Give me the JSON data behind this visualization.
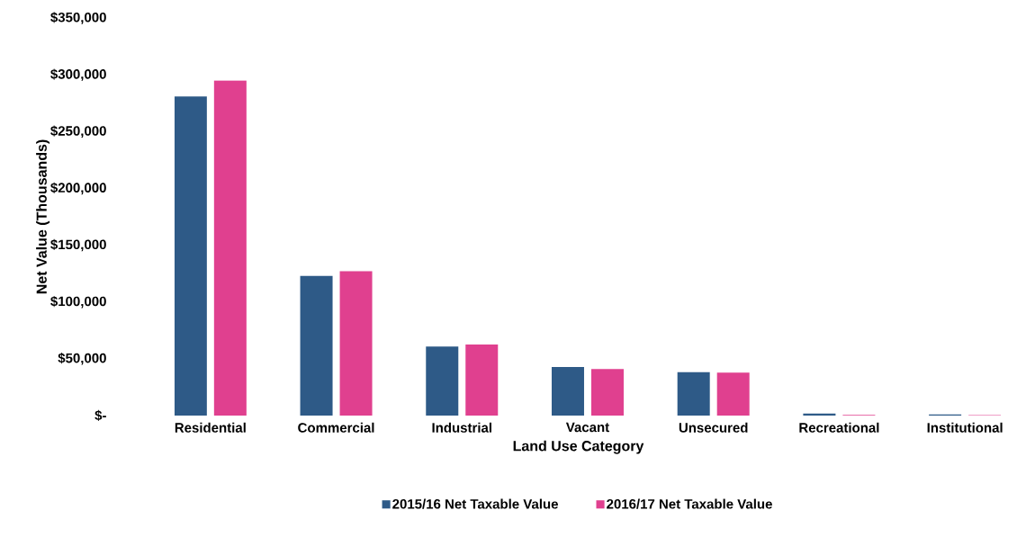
{
  "chart_data": {
    "type": "bar",
    "xlabel": "Land Use Category",
    "ylabel": "Net Value (Thousands)",
    "categories": [
      "Residential",
      "Commercial",
      "Industrial",
      "Vacant",
      "Unsecured",
      "Recreational",
      "Institutional"
    ],
    "series": [
      {
        "name": "2015/16 Net Taxable Value",
        "color": "#2e5a87",
        "values": [
          281000,
          123000,
          60800,
          42800,
          38200,
          1700,
          1000
        ]
      },
      {
        "name": "2016/17 Net Taxable Value",
        "color": "#e0408f",
        "values": [
          295000,
          127000,
          62600,
          41000,
          37800,
          600,
          400
        ]
      }
    ],
    "ylim": [
      0,
      350000
    ],
    "yticks": [
      {
        "value": 0,
        "label": "$-"
      },
      {
        "value": 50000,
        "label": "$50,000"
      },
      {
        "value": 100000,
        "label": "$100,000"
      },
      {
        "value": 150000,
        "label": "$150,000"
      },
      {
        "value": 200000,
        "label": "$200,000"
      },
      {
        "value": 250000,
        "label": "$250,000"
      },
      {
        "value": 300000,
        "label": "$300,000"
      },
      {
        "value": 350000,
        "label": "$350,000"
      }
    ],
    "legend": "bottom"
  }
}
